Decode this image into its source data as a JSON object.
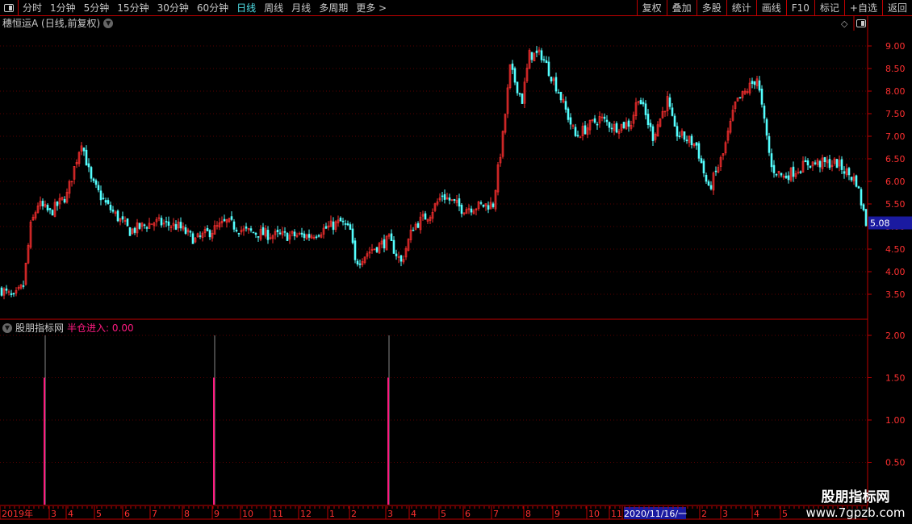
{
  "toolbar": {
    "periods": [
      "分时",
      "1分钟",
      "5分钟",
      "15分钟",
      "30分钟",
      "60分钟",
      "日线",
      "周线",
      "月线",
      "多周期",
      "更多 >"
    ],
    "active_period": "日线",
    "right_buttons": [
      "复权",
      "叠加",
      "多股",
      "统计",
      "画线",
      "F10",
      "标记",
      "+自选",
      "返回"
    ]
  },
  "chart_title": "穗恒运A (日线,前复权)",
  "indicator": {
    "name": "股朋指标网",
    "label": "半仓进入: 0.00"
  },
  "watermark": {
    "line1": "股朋指标网",
    "line2": "www.7gpzb.com"
  },
  "colors": {
    "up": "#ff3030",
    "down": "#54ffff",
    "signal": "#ff1a80",
    "grid": "#c00000",
    "current_price_bg": "#1a1aa0"
  },
  "chart_data": [
    {
      "type": "candlestick",
      "price_axis_ticks": [
        "9.00",
        "8.50",
        "8.00",
        "7.50",
        "7.00",
        "6.50",
        "6.00",
        "5.50",
        "5.00",
        "4.50",
        "4.00",
        "3.50"
      ],
      "ylim": [
        3.2,
        9.4
      ],
      "current_price": "5.08",
      "approx_close_path_by_bar": [
        [
          0,
          3.6
        ],
        [
          5,
          3.4
        ],
        [
          9,
          3.7
        ],
        [
          12,
          5.0
        ],
        [
          15,
          5.5
        ],
        [
          20,
          5.3
        ],
        [
          27,
          5.7
        ],
        [
          33,
          6.9
        ],
        [
          37,
          6.0
        ],
        [
          43,
          5.5
        ],
        [
          53,
          4.9
        ],
        [
          63,
          5.1
        ],
        [
          73,
          5.0
        ],
        [
          80,
          4.7
        ],
        [
          93,
          5.1
        ],
        [
          100,
          4.9
        ],
        [
          113,
          4.8
        ],
        [
          127,
          4.8
        ],
        [
          140,
          5.1
        ],
        [
          144,
          4.9
        ],
        [
          146,
          4.2
        ],
        [
          153,
          4.5
        ],
        [
          160,
          4.7
        ],
        [
          165,
          4.2
        ],
        [
          170,
          5.0
        ],
        [
          177,
          5.3
        ],
        [
          182,
          5.7
        ],
        [
          190,
          5.4
        ],
        [
          203,
          5.5
        ],
        [
          207,
          7.0
        ],
        [
          210,
          8.5
        ],
        [
          215,
          7.8
        ],
        [
          218,
          8.8
        ],
        [
          223,
          8.8
        ],
        [
          230,
          8.0
        ],
        [
          237,
          7.0
        ],
        [
          247,
          7.4
        ],
        [
          253,
          7.2
        ],
        [
          260,
          7.3
        ],
        [
          263,
          7.9
        ],
        [
          269,
          7.0
        ],
        [
          275,
          7.8
        ],
        [
          278,
          7.1
        ],
        [
          287,
          6.8
        ],
        [
          292,
          5.8
        ],
        [
          298,
          6.6
        ],
        [
          303,
          7.7
        ],
        [
          312,
          8.3
        ],
        [
          315,
          7.3
        ],
        [
          318,
          6.3
        ],
        [
          323,
          6.1
        ],
        [
          333,
          6.4
        ],
        [
          345,
          6.4
        ],
        [
          353,
          6.0
        ],
        [
          357,
          5.08
        ]
      ]
    },
    {
      "type": "bar",
      "name": "半仓进入",
      "ticks": [
        "2.00",
        "1.50",
        "1.00",
        "0.50"
      ],
      "ylim": [
        0,
        2.2
      ],
      "signals": [
        {
          "month": "3 (2019)",
          "value": 1.5,
          "marker": 2.0
        },
        {
          "month": "9 (2019)",
          "value": 1.5,
          "marker": 2.0
        },
        {
          "month": "3 (2020)",
          "value": 1.5,
          "marker": 2.0
        }
      ]
    }
  ],
  "time_axis": {
    "labels": [
      "2019年",
      "3",
      "4",
      "5",
      "6",
      "7",
      "8",
      "9",
      "10",
      "11",
      "12",
      "1",
      "2",
      "3",
      "4",
      "5",
      "6",
      "7",
      "8",
      "9",
      "10",
      "11",
      "2020/11/16/一",
      "2",
      "3",
      "4",
      "5"
    ]
  }
}
